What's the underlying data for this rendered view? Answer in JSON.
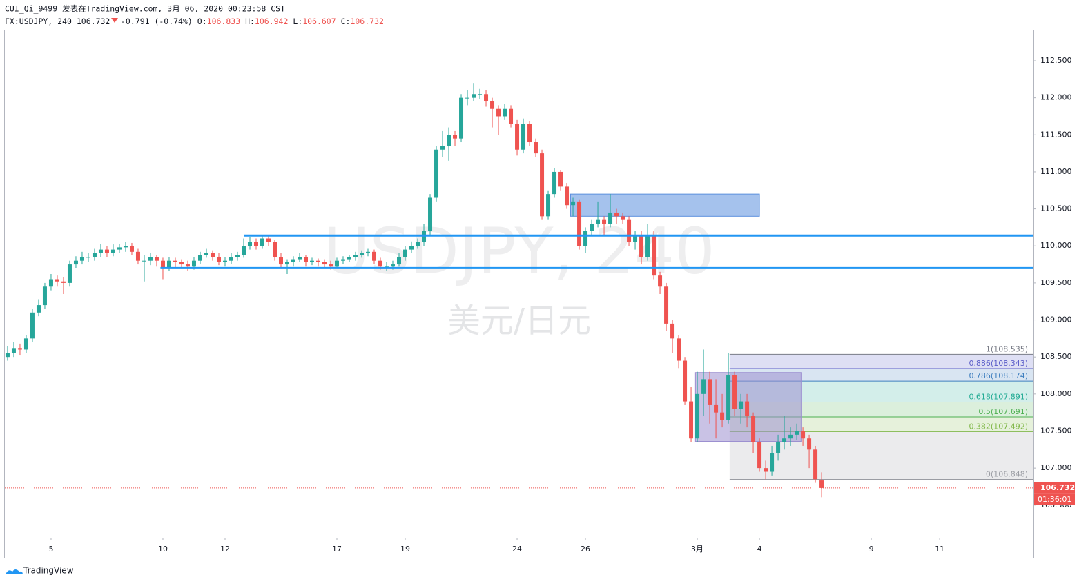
{
  "header": {
    "title": "CUI_Qi_9499 发表在TradingView.com, 3月 06, 2020 00:23:58 CST",
    "symbol": "FX:USDJPY, 240",
    "change": "-0.791 (-0.74%)",
    "ohlc_labels": [
      "O:",
      "H:",
      "L:",
      "C:"
    ]
  },
  "chart_data": {
    "type": "candlestick",
    "watermark": "USDJPY, 240",
    "watermark_sub": "美元/日元",
    "up_color": "#26a69a",
    "down_color": "#ef5350",
    "ohlc": [
      [
        108.5,
        108.65,
        108.45,
        108.55
      ],
      [
        108.55,
        108.7,
        108.5,
        108.62
      ],
      [
        108.62,
        108.68,
        108.52,
        108.6
      ],
      [
        108.6,
        108.8,
        108.55,
        108.75
      ],
      [
        108.75,
        109.15,
        108.7,
        109.1
      ],
      [
        109.1,
        109.28,
        109.05,
        109.2
      ],
      [
        109.2,
        109.5,
        109.15,
        109.45
      ],
      [
        109.45,
        109.62,
        109.4,
        109.55
      ],
      [
        109.55,
        109.6,
        109.45,
        109.52
      ],
      [
        109.52,
        109.58,
        109.35,
        109.5
      ],
      [
        109.5,
        109.8,
        109.45,
        109.75
      ],
      [
        109.75,
        109.86,
        109.7,
        109.8
      ],
      [
        109.8,
        109.92,
        109.75,
        109.85
      ],
      [
        109.85,
        109.9,
        109.78,
        109.85
      ],
      [
        109.85,
        109.96,
        109.8,
        109.9
      ],
      [
        109.9,
        110.03,
        109.85,
        109.95
      ],
      [
        109.95,
        110.0,
        109.85,
        109.9
      ],
      [
        109.9,
        110.02,
        109.86,
        109.95
      ],
      [
        109.95,
        110.03,
        109.9,
        109.98
      ],
      [
        109.98,
        110.05,
        109.92,
        110.0
      ],
      [
        110.0,
        110.04,
        109.88,
        109.92
      ],
      [
        109.92,
        109.96,
        109.75,
        109.8
      ],
      [
        109.8,
        109.88,
        109.52,
        109.8
      ],
      [
        109.8,
        109.9,
        109.74,
        109.85
      ],
      [
        109.85,
        109.88,
        109.72,
        109.8
      ],
      [
        109.8,
        109.84,
        109.55,
        109.7
      ],
      [
        109.7,
        109.85,
        109.66,
        109.8
      ],
      [
        109.8,
        109.84,
        109.7,
        109.78
      ],
      [
        109.78,
        109.82,
        109.7,
        109.75
      ],
      [
        109.75,
        109.8,
        109.66,
        109.72
      ],
      [
        109.72,
        109.85,
        109.68,
        109.8
      ],
      [
        109.8,
        109.92,
        109.76,
        109.88
      ],
      [
        109.88,
        109.96,
        109.84,
        109.9
      ],
      [
        109.9,
        109.94,
        109.8,
        109.85
      ],
      [
        109.85,
        109.9,
        109.74,
        109.78
      ],
      [
        109.78,
        109.85,
        109.72,
        109.8
      ],
      [
        109.8,
        109.9,
        109.76,
        109.85
      ],
      [
        109.85,
        109.92,
        109.8,
        109.88
      ],
      [
        109.88,
        110.1,
        109.84,
        110.0
      ],
      [
        110.0,
        110.12,
        109.95,
        110.05
      ],
      [
        110.05,
        110.1,
        109.95,
        110.0
      ],
      [
        110.0,
        110.15,
        109.96,
        110.1
      ],
      [
        110.1,
        110.14,
        110.0,
        110.05
      ],
      [
        110.05,
        110.08,
        109.8,
        109.85
      ],
      [
        109.85,
        109.9,
        109.7,
        109.75
      ],
      [
        109.75,
        109.82,
        109.62,
        109.78
      ],
      [
        109.78,
        109.86,
        109.72,
        109.82
      ],
      [
        109.82,
        109.9,
        109.78,
        109.85
      ],
      [
        109.85,
        109.88,
        109.72,
        109.78
      ],
      [
        109.78,
        109.84,
        109.74,
        109.8
      ],
      [
        109.8,
        109.83,
        109.72,
        109.78
      ],
      [
        109.78,
        109.82,
        109.7,
        109.75
      ],
      [
        109.75,
        109.8,
        109.68,
        109.72
      ],
      [
        109.72,
        109.84,
        109.7,
        109.8
      ],
      [
        109.8,
        109.86,
        109.76,
        109.82
      ],
      [
        109.82,
        109.88,
        109.78,
        109.85
      ],
      [
        109.85,
        109.92,
        109.8,
        109.88
      ],
      [
        109.88,
        109.94,
        109.84,
        109.9
      ],
      [
        109.9,
        109.96,
        109.86,
        109.92
      ],
      [
        109.92,
        109.95,
        109.76,
        109.8
      ],
      [
        109.8,
        109.84,
        109.68,
        109.72
      ],
      [
        109.72,
        109.78,
        109.66,
        109.72
      ],
      [
        109.72,
        109.8,
        109.68,
        109.75
      ],
      [
        109.75,
        109.9,
        109.72,
        109.85
      ],
      [
        109.85,
        110.0,
        109.8,
        109.95
      ],
      [
        109.95,
        110.06,
        109.9,
        110.0
      ],
      [
        110.0,
        110.1,
        109.96,
        110.05
      ],
      [
        110.05,
        110.3,
        110.0,
        110.2
      ],
      [
        110.2,
        110.7,
        110.15,
        110.65
      ],
      [
        110.65,
        111.35,
        110.6,
        111.3
      ],
      [
        111.3,
        111.55,
        111.2,
        111.35
      ],
      [
        111.35,
        111.6,
        111.15,
        111.5
      ],
      [
        111.5,
        111.55,
        111.35,
        111.45
      ],
      [
        111.45,
        112.05,
        111.4,
        112.0
      ],
      [
        112.0,
        112.1,
        111.9,
        112.0
      ],
      [
        112.0,
        112.2,
        111.95,
        112.05
      ],
      [
        112.05,
        112.12,
        111.98,
        112.05
      ],
      [
        112.05,
        112.1,
        111.88,
        111.95
      ],
      [
        111.95,
        112.0,
        111.6,
        111.85
      ],
      [
        111.85,
        111.9,
        111.5,
        111.75
      ],
      [
        111.75,
        111.92,
        111.7,
        111.85
      ],
      [
        111.85,
        111.9,
        111.6,
        111.65
      ],
      [
        111.65,
        111.7,
        111.22,
        111.3
      ],
      [
        111.3,
        111.72,
        111.25,
        111.65
      ],
      [
        111.65,
        111.68,
        111.35,
        111.4
      ],
      [
        111.4,
        111.45,
        111.2,
        111.25
      ],
      [
        111.25,
        111.3,
        110.35,
        110.4
      ],
      [
        110.4,
        110.75,
        110.35,
        110.7
      ],
      [
        110.7,
        111.05,
        110.65,
        111.0
      ],
      [
        111.0,
        111.02,
        110.75,
        110.8
      ],
      [
        110.8,
        110.85,
        110.5,
        110.55
      ],
      [
        110.55,
        110.65,
        110.4,
        110.6
      ],
      [
        110.6,
        110.62,
        109.95,
        110.0
      ],
      [
        110.0,
        110.25,
        109.9,
        110.2
      ],
      [
        110.2,
        110.35,
        110.15,
        110.3
      ],
      [
        110.3,
        110.6,
        110.25,
        110.35
      ],
      [
        110.35,
        110.4,
        110.15,
        110.3
      ],
      [
        110.3,
        110.7,
        110.25,
        110.45
      ],
      [
        110.45,
        110.5,
        110.3,
        110.4
      ],
      [
        110.4,
        110.45,
        110.3,
        110.35
      ],
      [
        110.35,
        110.4,
        110.0,
        110.05
      ],
      [
        110.05,
        110.2,
        109.95,
        110.15
      ],
      [
        110.15,
        110.2,
        109.75,
        109.85
      ],
      [
        109.85,
        110.3,
        109.8,
        110.15
      ],
      [
        110.15,
        110.2,
        109.55,
        109.6
      ],
      [
        109.6,
        109.65,
        109.35,
        109.45
      ],
      [
        109.45,
        109.5,
        108.85,
        108.95
      ],
      [
        108.95,
        109.0,
        108.55,
        108.75
      ],
      [
        108.75,
        108.8,
        108.35,
        108.45
      ],
      [
        108.45,
        108.5,
        107.85,
        107.9
      ],
      [
        107.9,
        108.1,
        107.35,
        107.4
      ],
      [
        107.4,
        108.3,
        107.35,
        108.0
      ],
      [
        108.0,
        108.6,
        107.7,
        108.2
      ],
      [
        108.2,
        108.3,
        107.6,
        107.85
      ],
      [
        107.85,
        108.2,
        107.4,
        107.75
      ],
      [
        107.75,
        108.0,
        107.55,
        107.65
      ],
      [
        107.65,
        108.55,
        107.6,
        108.25
      ],
      [
        108.25,
        108.3,
        107.7,
        107.8
      ],
      [
        107.8,
        108.0,
        107.6,
        107.9
      ],
      [
        107.9,
        108.0,
        107.55,
        107.7
      ],
      [
        107.7,
        107.75,
        107.2,
        107.35
      ],
      [
        107.35,
        107.4,
        106.95,
        107.0
      ],
      [
        107.0,
        107.1,
        106.85,
        106.95
      ],
      [
        106.95,
        107.3,
        106.9,
        107.2
      ],
      [
        107.2,
        107.45,
        107.1,
        107.35
      ],
      [
        107.35,
        107.7,
        107.25,
        107.4
      ],
      [
        107.4,
        107.55,
        107.3,
        107.45
      ],
      [
        107.45,
        107.6,
        107.38,
        107.5
      ],
      [
        107.5,
        107.55,
        107.3,
        107.4
      ],
      [
        107.4,
        107.45,
        107.0,
        107.25
      ],
      [
        107.25,
        107.3,
        106.8,
        106.85
      ],
      [
        106.833,
        106.942,
        106.607,
        106.732
      ]
    ],
    "xlim": [
      -0.44,
      165.1
    ],
    "xticks": [
      {
        "value": 7,
        "label": "5"
      },
      {
        "value": 25,
        "label": "10"
      },
      {
        "value": 35,
        "label": "12"
      },
      {
        "value": 53,
        "label": "17"
      },
      {
        "value": 64,
        "label": "19"
      },
      {
        "value": 82,
        "label": "24"
      },
      {
        "value": 93,
        "label": "26"
      },
      {
        "value": 111,
        "label": "3月"
      },
      {
        "value": 121,
        "label": "4"
      },
      {
        "value": 139,
        "label": "9"
      },
      {
        "value": 150,
        "label": "11"
      }
    ],
    "ylim": [
      106.06,
      112.91
    ],
    "yticks": [
      {
        "value": 106.5,
        "label": "106.500"
      },
      {
        "value": 107,
        "label": "107.000"
      },
      {
        "value": 107.5,
        "label": "107.500"
      },
      {
        "value": 108,
        "label": "108.000"
      },
      {
        "value": 108.5,
        "label": "108.500"
      },
      {
        "value": 109,
        "label": "109.000"
      },
      {
        "value": 109.5,
        "label": "109.500"
      },
      {
        "value": 110,
        "label": "110.000"
      },
      {
        "value": 110.5,
        "label": "110.500"
      },
      {
        "value": 111,
        "label": "111.000"
      },
      {
        "value": 111.5,
        "label": "111.500"
      },
      {
        "value": 112,
        "label": "112.000"
      },
      {
        "value": 112.5,
        "label": "112.500"
      }
    ],
    "last_price_label": "106.732",
    "countdown": "01:36:01",
    "hlines": [
      {
        "value": 110.14,
        "x_start": 38,
        "color": "#2196f3"
      },
      {
        "value": 109.7,
        "x_start": 24.6,
        "color": "#2196f3"
      }
    ],
    "zones": [
      {
        "x": [
          90.6,
          121
        ],
        "y": [
          110.4,
          110.7
        ],
        "color": "#5b8fde"
      },
      {
        "x": [
          110.7,
          127.7
        ],
        "y": [
          107.36,
          108.29
        ],
        "color": "#9c8fd0"
      }
    ],
    "fib": {
      "x_start": 116.2,
      "levels": [
        {
          "label": "1(108.535)",
          "value": 108.535,
          "color": "#787b86"
        },
        {
          "label": "0.886(108.343)",
          "value": 108.343,
          "color": "#5c5fc9"
        },
        {
          "label": "0.786(108.174)",
          "value": 108.174,
          "color": "#3f7fbf"
        },
        {
          "label": "0.618(107.891)",
          "value": 107.891,
          "color": "#22ab94"
        },
        {
          "label": "0.5(107.691)",
          "value": 107.691,
          "color": "#4caf50"
        },
        {
          "label": "0.382(107.492)",
          "value": 107.492,
          "color": "#81b84a"
        },
        {
          "label": "0(106.848)",
          "value": 106.848,
          "color": "#9a9ca3"
        }
      ]
    }
  },
  "footer": {
    "brand": "TradingView"
  }
}
